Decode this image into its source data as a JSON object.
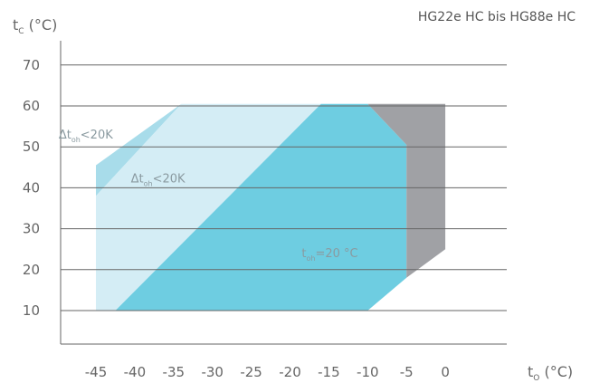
{
  "chart_data": {
    "type": "area",
    "title": "HG22e HC bis HG88e HC",
    "xlabel": {
      "base": "t",
      "sub": "O",
      "unit": " (°C)"
    },
    "ylabel": {
      "base": "t",
      "sub": "C",
      "unit": " (°C)"
    },
    "xlim": [
      -47.5,
      2
    ],
    "ylim": [
      5,
      76
    ],
    "xticks": [
      -45,
      -40,
      -35,
      -30,
      -25,
      -20,
      -15,
      -10,
      -5,
      0
    ],
    "xtick_labels": [
      "-45",
      "-40",
      "-35",
      "-30",
      "-25",
      "-20",
      "-15",
      "-10",
      "-5",
      "0"
    ],
    "yticks": [
      10,
      20,
      30,
      40,
      50,
      60,
      70
    ],
    "ytick_labels": [
      "10",
      "20",
      "30",
      "40",
      "50",
      "60",
      "70"
    ],
    "grid": "horizontal",
    "colors": {
      "light_blue": "#a8dcea",
      "pale_blue": "#d4edf5",
      "main_blue": "#6ecde1",
      "gray": "#a0a1a5",
      "grid": "#666666",
      "text": "#666666"
    },
    "regions": [
      {
        "fill": "light_blue",
        "points": [
          [
            -45,
            45.5
          ],
          [
            -34,
            60.5
          ],
          [
            -45,
            38
          ]
        ]
      },
      {
        "fill": "pale_blue",
        "points": [
          [
            -45,
            38
          ],
          [
            -34,
            60.5
          ],
          [
            -16,
            60.5
          ],
          [
            -42.5,
            10
          ],
          [
            -45,
            10
          ]
        ]
      },
      {
        "fill": "main_blue",
        "points": [
          [
            -42.5,
            10
          ],
          [
            -16,
            60.5
          ],
          [
            -10,
            60.5
          ],
          [
            -5,
            50.5
          ],
          [
            -5,
            18
          ],
          [
            -10,
            10
          ]
        ]
      },
      {
        "fill": "gray",
        "points": [
          [
            -10,
            60.5
          ],
          [
            0,
            60.5
          ],
          [
            0,
            25
          ],
          [
            -5,
            18
          ],
          [
            -5,
            50.5
          ]
        ]
      }
    ],
    "annotations": [
      {
        "base": "Δt",
        "sub": "oh",
        "rest": "<20K",
        "x": -49.8,
        "y": 52
      },
      {
        "base": "Δt",
        "sub": "oh",
        "rest": "<20K",
        "x": -40.5,
        "y": 41.3
      },
      {
        "base": "t",
        "sub": "oh",
        "rest": "=20 °C",
        "x": -18.5,
        "y": 23
      }
    ]
  }
}
